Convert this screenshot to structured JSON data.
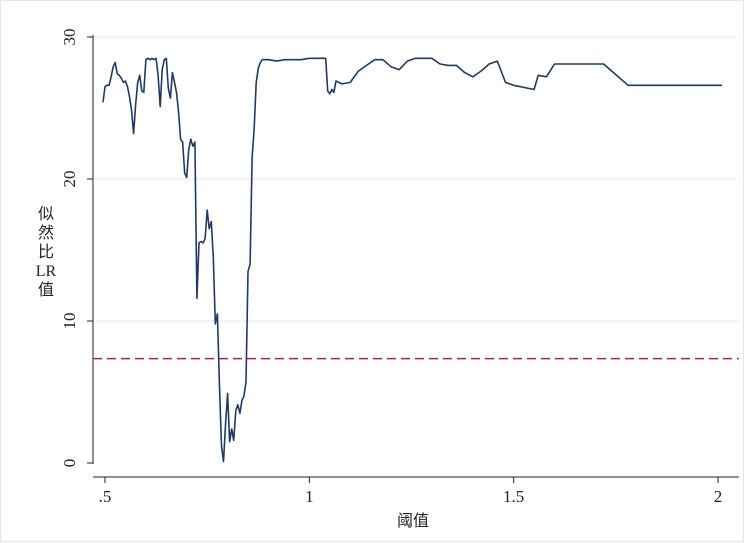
{
  "chart_data": {
    "type": "line",
    "title": "",
    "xlabel": "阈值",
    "ylabel_lines": [
      "似",
      "然",
      "比",
      "LR",
      "值"
    ],
    "xlim": [
      0.5,
      2.0
    ],
    "ylim": [
      0,
      30
    ],
    "x_ticks": [
      {
        "value": 0.5,
        "label": ".5"
      },
      {
        "value": 1.0,
        "label": "1"
      },
      {
        "value": 1.5,
        "label": "1.5"
      },
      {
        "value": 2.0,
        "label": "2"
      }
    ],
    "y_ticks": [
      {
        "value": 0,
        "label": "0"
      },
      {
        "value": 10,
        "label": "10"
      },
      {
        "value": 20,
        "label": "20"
      },
      {
        "value": 30,
        "label": "30"
      }
    ],
    "grid": "horizontal",
    "colors": {
      "series": "#1f3b63",
      "critical": "#b5213a",
      "grid": "#e9e9e9"
    },
    "critical_value": 7.35,
    "series": [
      {
        "x": [
          0.495,
          0.5,
          0.505,
          0.51,
          0.515,
          0.52,
          0.525,
          0.53,
          0.535,
          0.54,
          0.545,
          0.55,
          0.555,
          0.56,
          0.565,
          0.57,
          0.575,
          0.58,
          0.585,
          0.59,
          0.595,
          0.6,
          0.605,
          0.61,
          0.615,
          0.62,
          0.625,
          0.63,
          0.635,
          0.64,
          0.645,
          0.65,
          0.655,
          0.66,
          0.665,
          0.67,
          0.675,
          0.68,
          0.685,
          0.69,
          0.695,
          0.7,
          0.705,
          0.71,
          0.715,
          0.72,
          0.725,
          0.73,
          0.735,
          0.74,
          0.745,
          0.75,
          0.755,
          0.76,
          0.765,
          0.77,
          0.775,
          0.78,
          0.785,
          0.79,
          0.795,
          0.8,
          0.805,
          0.81,
          0.815,
          0.82,
          0.825,
          0.83,
          0.835,
          0.84,
          0.845,
          0.85,
          0.855,
          0.86,
          0.865,
          0.87,
          0.875,
          0.88,
          0.885,
          0.89,
          0.895,
          0.9,
          0.92,
          0.94,
          0.96,
          0.98,
          1.0,
          1.02,
          1.04,
          1.045,
          1.05,
          1.055,
          1.06,
          1.065,
          1.08,
          1.1,
          1.12,
          1.14,
          1.16,
          1.18,
          1.2,
          1.22,
          1.24,
          1.26,
          1.28,
          1.3,
          1.32,
          1.34,
          1.36,
          1.38,
          1.4,
          1.42,
          1.44,
          1.46,
          1.48,
          1.5,
          1.55,
          1.56,
          1.58,
          1.6,
          1.65,
          1.7,
          1.72,
          1.78,
          1.85,
          1.9,
          1.95,
          2.01
        ],
        "y": [
          25.4,
          26.5,
          26.6,
          26.6,
          27.2,
          27.9,
          28.2,
          27.4,
          27.3,
          27.1,
          26.8,
          26.9,
          26.5,
          25.8,
          24.8,
          23.2,
          25.2,
          26.8,
          27.3,
          26.2,
          26.1,
          28.4,
          28.5,
          28.4,
          28.5,
          28.4,
          28.5,
          27.3,
          25.1,
          27.7,
          28.4,
          28.5,
          26.4,
          25.7,
          27.5,
          26.8,
          26.1,
          24.7,
          22.8,
          22.6,
          20.4,
          20.1,
          22.1,
          22.8,
          22.3,
          22.6,
          11.6,
          15.5,
          15.6,
          15.5,
          15.8,
          17.8,
          16.5,
          17.0,
          14.5,
          9.8,
          10.5,
          5.6,
          1.2,
          0.1,
          2.8,
          4.9,
          1.5,
          2.4,
          1.6,
          3.7,
          4.1,
          3.5,
          4.4,
          4.7,
          5.7,
          13.5,
          14.0,
          21.5,
          23.6,
          26.8,
          27.8,
          28.2,
          28.4,
          28.4,
          28.4,
          28.4,
          28.3,
          28.4,
          28.4,
          28.4,
          28.5,
          28.5,
          28.5,
          26.2,
          26.0,
          26.3,
          26.1,
          26.9,
          26.7,
          26.8,
          27.6,
          28.0,
          28.4,
          28.4,
          27.9,
          27.7,
          28.3,
          28.5,
          28.5,
          28.5,
          28.1,
          28.0,
          28.0,
          27.5,
          27.2,
          27.6,
          28.1,
          28.3,
          26.8,
          26.6,
          26.3,
          27.3,
          27.2,
          28.1,
          28.1,
          28.1,
          28.1,
          26.6,
          26.6,
          26.6,
          26.6,
          26.6
        ]
      }
    ]
  }
}
